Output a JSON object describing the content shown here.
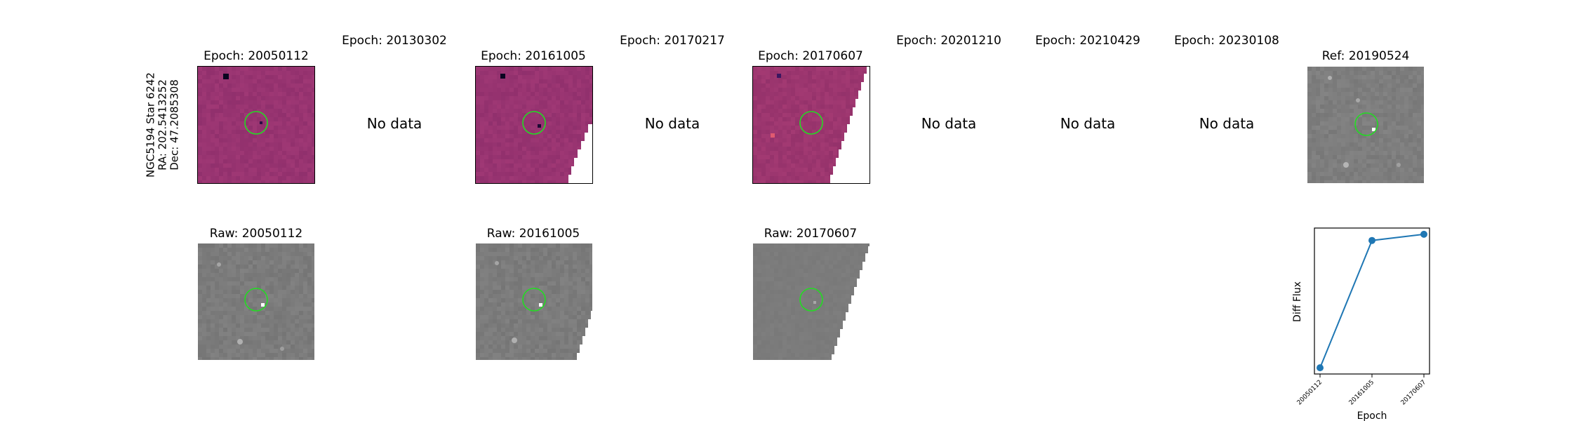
{
  "side_label": [
    "NGC5194 Star 6242",
    "RA: 202.5413252",
    "Dec: 47.2085308"
  ],
  "top_row": [
    {
      "title": "Epoch: 20050112",
      "has_data": true
    },
    {
      "title": "Epoch: 20130302",
      "has_data": false,
      "note": "No data"
    },
    {
      "title": "Epoch: 20161005",
      "has_data": true
    },
    {
      "title": "Epoch: 20170217",
      "has_data": false,
      "note": "No data"
    },
    {
      "title": "Epoch: 20170607",
      "has_data": true
    },
    {
      "title": "Epoch: 20201210",
      "has_data": false,
      "note": "No data"
    },
    {
      "title": "Epoch: 20210429",
      "has_data": false,
      "note": "No data"
    },
    {
      "title": "Epoch: 20230108",
      "has_data": false,
      "note": "No data"
    },
    {
      "title": "Ref: 20190524",
      "has_data": true
    }
  ],
  "bottom_row": [
    {
      "title": "Raw: 20050112"
    },
    {
      "title": "Raw: 20161005"
    },
    {
      "title": "Raw: 20170607"
    }
  ],
  "colors": {
    "diff_base": "#9a3a78",
    "raw_base": "#7c7c7c",
    "ref_base": "#808080",
    "aperture": "#22dd22",
    "series": "#1f77b4"
  },
  "chart_data": {
    "type": "line",
    "x": [
      "20050112",
      "20161005",
      "20170607"
    ],
    "values": [
      0.0,
      0.82,
      0.86
    ],
    "xlabel": "Epoch",
    "ylabel": "Diff Flux",
    "ylim": [
      -0.04,
      0.9
    ]
  }
}
